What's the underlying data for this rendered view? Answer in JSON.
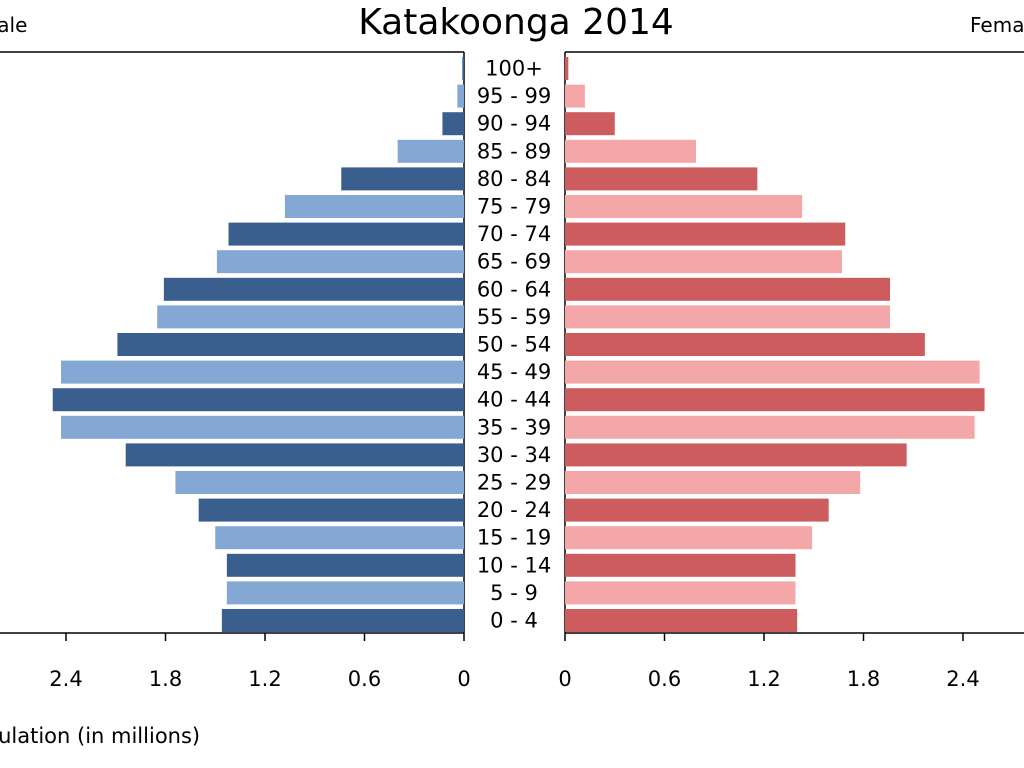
{
  "chart_data": {
    "type": "bar",
    "orientation": "horizontal-population-pyramid",
    "title": "Katakoonga 2014",
    "left_label": "Male",
    "right_label": "Female",
    "xlabel": "Population (in millions)",
    "xlim": [
      0,
      2.6
    ],
    "ticks": [
      0,
      0.6,
      1.2,
      1.8,
      2.4
    ],
    "tick_labels": [
      "0",
      "0.6",
      "1.2",
      "1.8",
      "2.4"
    ],
    "categories": [
      "100+",
      "95 - 99",
      "90 - 94",
      "85 - 89",
      "80 - 84",
      "75 - 79",
      "70 - 74",
      "65 - 69",
      "60 - 64",
      "55 - 59",
      "50 - 54",
      "45 - 49",
      "40 - 44",
      "35 - 39",
      "30 - 34",
      "25 - 29",
      "20 - 24",
      "15 - 19",
      "10 - 14",
      "5 - 9",
      "0 - 4"
    ],
    "series": [
      {
        "name": "Male",
        "values": [
          0.01,
          0.04,
          0.13,
          0.4,
          0.74,
          1.08,
          1.42,
          1.49,
          1.81,
          1.85,
          2.09,
          2.43,
          2.48,
          2.43,
          2.04,
          1.74,
          1.6,
          1.5,
          1.43,
          1.43,
          1.46
        ]
      },
      {
        "name": "Female",
        "values": [
          0.02,
          0.12,
          0.3,
          0.79,
          1.16,
          1.43,
          1.69,
          1.67,
          1.96,
          1.96,
          2.17,
          2.5,
          2.53,
          2.47,
          2.06,
          1.78,
          1.59,
          1.49,
          1.39,
          1.39,
          1.4
        ]
      }
    ],
    "colors": {
      "male_dark": "#3a5f8e",
      "male_light": "#84a7d3",
      "female_dark": "#cd5c5f",
      "female_light": "#f4a7a8"
    }
  }
}
